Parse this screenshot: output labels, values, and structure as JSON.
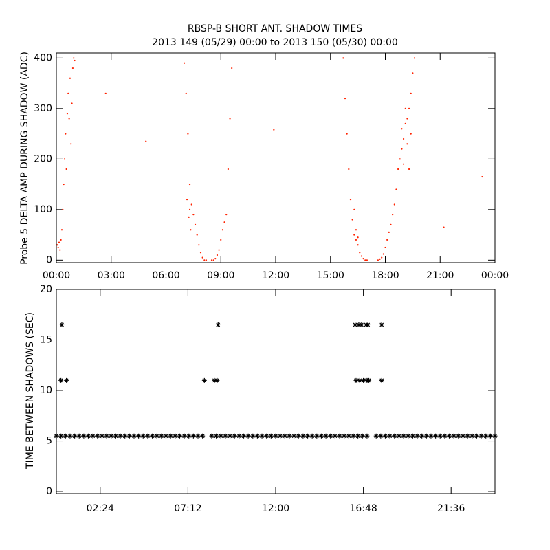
{
  "chart_data": [
    {
      "type": "scatter",
      "title": "RBSP-B SHORT ANT. SHADOW TIMES",
      "subtitle": "2013 149 (05/29) 00:00 to 2013 150 (05/30) 00:00",
      "y_label": "Probe 5 DELTA AMP DURING SHADOW (ADC)",
      "color": "#ff2200",
      "marker": "dot",
      "xlim": [
        0,
        24
      ],
      "ylim": [
        -5,
        410
      ],
      "xticks": [
        {
          "value": 0,
          "label": "00:00"
        },
        {
          "value": 3,
          "label": "03:00"
        },
        {
          "value": 6,
          "label": "06:00"
        },
        {
          "value": 9,
          "label": "09:00"
        },
        {
          "value": 12,
          "label": "12:00"
        },
        {
          "value": 15,
          "label": "15:00"
        },
        {
          "value": 18,
          "label": "18:00"
        },
        {
          "value": 21,
          "label": "21:00"
        },
        {
          "value": 24,
          "label": "00:00"
        }
      ],
      "yticks": [
        0,
        100,
        200,
        300,
        400
      ],
      "x": [
        0.05,
        0.1,
        0.15,
        0.2,
        0.25,
        0.3,
        0.35,
        0.4,
        0.45,
        0.5,
        0.55,
        0.6,
        0.65,
        0.7,
        0.75,
        0.8,
        0.85,
        0.9,
        0.95,
        1.0,
        2.7,
        4.9,
        7.0,
        7.1,
        7.2,
        7.3,
        7.4,
        7.5,
        7.6,
        7.7,
        7.8,
        7.9,
        8.0,
        8.1,
        8.2,
        7.15,
        7.25,
        7.3,
        7.35,
        8.5,
        8.6,
        8.7,
        8.8,
        8.9,
        9.0,
        9.1,
        9.2,
        9.3,
        9.4,
        9.5,
        9.6,
        11.9,
        15.7,
        15.8,
        15.9,
        16.0,
        16.1,
        16.2,
        16.3,
        16.4,
        16.5,
        16.6,
        16.7,
        16.8,
        16.9,
        17.0,
        16.3,
        16.4,
        16.5,
        17.6,
        17.7,
        17.8,
        17.9,
        18.0,
        18.1,
        18.2,
        18.3,
        18.4,
        18.5,
        18.6,
        18.7,
        18.8,
        18.9,
        19.0,
        19.1,
        19.2,
        19.3,
        19.4,
        19.5,
        19.6,
        18.9,
        19.0,
        19.2,
        19.3,
        19.4,
        19.1,
        21.2,
        23.3
      ],
      "values": [
        30,
        25,
        35,
        20,
        40,
        60,
        100,
        150,
        200,
        250,
        180,
        290,
        330,
        280,
        360,
        230,
        310,
        380,
        400,
        395,
        330,
        235,
        390,
        330,
        250,
        150,
        110,
        90,
        70,
        50,
        30,
        15,
        5,
        0,
        0,
        120,
        85,
        100,
        60,
        0,
        0,
        3,
        10,
        20,
        40,
        60,
        75,
        90,
        180,
        280,
        380,
        258,
        400,
        320,
        250,
        180,
        120,
        80,
        50,
        40,
        30,
        15,
        8,
        3,
        0,
        0,
        100,
        60,
        45,
        0,
        2,
        5,
        12,
        25,
        40,
        55,
        70,
        90,
        110,
        140,
        180,
        200,
        220,
        240,
        270,
        280,
        300,
        330,
        370,
        400,
        260,
        190,
        230,
        180,
        250,
        300,
        65,
        165
      ]
    },
    {
      "type": "scatter",
      "y_label": "TIME BETWEEN SHADOWS (SEC)",
      "color": "#000000",
      "marker": "asterisk",
      "xlim": [
        0,
        24
      ],
      "ylim": [
        -0.2,
        20
      ],
      "xticks": [
        {
          "value": 2.4,
          "label": "02:24"
        },
        {
          "value": 7.2,
          "label": "07:12"
        },
        {
          "value": 12,
          "label": "12:00"
        },
        {
          "value": 16.8,
          "label": "16:48"
        },
        {
          "value": 21.6,
          "label": "21:36"
        }
      ],
      "yticks": [
        0,
        5,
        10,
        15,
        20
      ],
      "x": [
        0,
        0.25,
        0.5,
        0.75,
        1,
        1.25,
        1.5,
        1.75,
        2,
        2.25,
        2.5,
        2.75,
        3,
        3.25,
        3.5,
        3.75,
        4,
        4.25,
        4.5,
        4.75,
        5,
        5.25,
        5.5,
        5.75,
        6,
        6.25,
        6.5,
        6.75,
        7,
        7.25,
        7.5,
        7.75,
        8,
        8.5,
        8.75,
        9,
        9.25,
        9.5,
        9.75,
        10,
        10.25,
        10.5,
        10.75,
        11,
        11.25,
        11.5,
        11.75,
        12,
        12.25,
        12.5,
        12.75,
        13,
        13.25,
        13.5,
        13.75,
        14,
        14.25,
        14.5,
        14.75,
        15,
        15.25,
        15.5,
        15.75,
        16,
        16.25,
        16.5,
        16.75,
        17,
        17.5,
        17.75,
        18,
        18.25,
        18.5,
        18.75,
        19,
        19.25,
        19.5,
        19.75,
        20,
        20.25,
        20.5,
        20.75,
        21,
        21.25,
        21.5,
        21.75,
        22,
        22.25,
        22.5,
        22.75,
        23,
        23.25,
        23.5,
        23.75,
        24,
        0.25,
        0.55,
        8.1,
        8.65,
        8.8,
        16.4,
        16.6,
        16.8,
        17.0,
        17.1,
        17.8,
        0.3,
        8.85,
        16.35,
        16.55,
        16.7,
        16.95,
        17.05,
        17.8
      ],
      "values": [
        5.5,
        5.5,
        5.5,
        5.5,
        5.5,
        5.5,
        5.5,
        5.5,
        5.5,
        5.5,
        5.5,
        5.5,
        5.5,
        5.5,
        5.5,
        5.5,
        5.5,
        5.5,
        5.5,
        5.5,
        5.5,
        5.5,
        5.5,
        5.5,
        5.5,
        5.5,
        5.5,
        5.5,
        5.5,
        5.5,
        5.5,
        5.5,
        5.5,
        5.5,
        5.5,
        5.5,
        5.5,
        5.5,
        5.5,
        5.5,
        5.5,
        5.5,
        5.5,
        5.5,
        5.5,
        5.5,
        5.5,
        5.5,
        5.5,
        5.5,
        5.5,
        5.5,
        5.5,
        5.5,
        5.5,
        5.5,
        5.5,
        5.5,
        5.5,
        5.5,
        5.5,
        5.5,
        5.5,
        5.5,
        5.5,
        5.5,
        5.5,
        5.5,
        5.5,
        5.5,
        5.5,
        5.5,
        5.5,
        5.5,
        5.5,
        5.5,
        5.5,
        5.5,
        5.5,
        5.5,
        5.5,
        5.5,
        5.5,
        5.5,
        5.5,
        5.5,
        5.5,
        5.5,
        5.5,
        5.5,
        5.5,
        5.5,
        5.5,
        5.5,
        5.5,
        11,
        11,
        11,
        11,
        11,
        11,
        11,
        11,
        11,
        11,
        11,
        16.5,
        16.5,
        16.5,
        16.5,
        16.5,
        16.5,
        16.5,
        16.5
      ]
    }
  ]
}
